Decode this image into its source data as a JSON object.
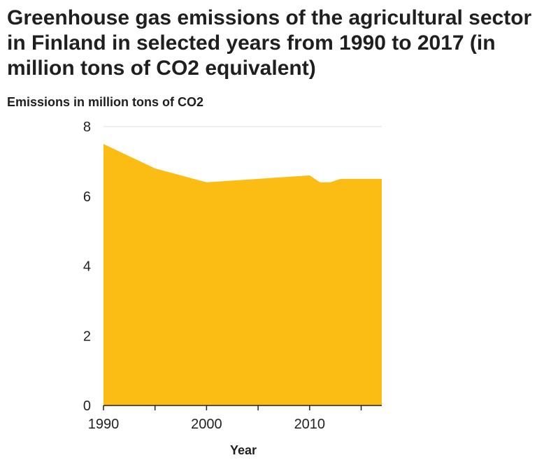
{
  "chart_data": {
    "type": "area",
    "title": "Greenhouse gas emissions of the agricultural sector in Finland in selected years from 1990 to 2017 (in million tons of CO2 equivalent)",
    "xlabel": "Year",
    "ylabel": "Emissions in million tons of CO2",
    "x": [
      1990,
      1995,
      2000,
      2005,
      2010,
      2011,
      2012,
      2013,
      2014,
      2015,
      2016,
      2017
    ],
    "series": [
      {
        "values": [
          7.5,
          6.8,
          6.4,
          6.5,
          6.6,
          6.4,
          6.4,
          6.5,
          6.5,
          6.5,
          6.5,
          6.5
        ]
      }
    ],
    "xlim": [
      1990,
      2017
    ],
    "ylim": [
      0,
      8
    ],
    "yticks": [
      0,
      2,
      4,
      6,
      8
    ],
    "xticks": [
      1990,
      1995,
      2000,
      2005,
      2010,
      2015
    ],
    "xtick_labels": [
      "1990",
      "",
      "2000",
      "",
      "2010",
      ""
    ],
    "grid": "horizontal",
    "legend": "none",
    "fill_color": "#fbbc13",
    "grid_color": "#dddddd",
    "axis_color": "#222222"
  }
}
